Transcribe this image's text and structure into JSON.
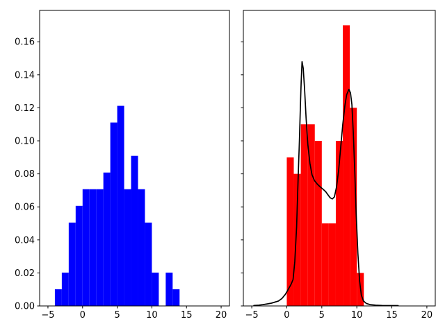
{
  "figure": {
    "background": "#ffffff",
    "description": "Two-panel density histogram figure; left panel blue histogram, right panel red histogram with black kernel-density curve overlay"
  },
  "chart_data": [
    {
      "type": "bar",
      "subtype": "density-histogram",
      "panel": "left",
      "title": "",
      "xlabel": "",
      "ylabel": "",
      "bar_color": "#0000ff",
      "grid": false,
      "legend": null,
      "xlim": [
        -6.2,
        21.2
      ],
      "ylim": [
        0,
        0.179
      ],
      "x_ticks": [
        -5,
        0,
        5,
        10,
        15,
        20
      ],
      "x_tick_labels": [
        "−5",
        "0",
        "5",
        "10",
        "15",
        "20"
      ],
      "y_ticks": [
        0,
        0.02,
        0.04,
        0.06,
        0.08,
        0.1,
        0.12,
        0.14,
        0.16
      ],
      "y_tick_labels": [
        "0.00",
        "0.02",
        "0.04",
        "0.06",
        "0.08",
        "0.10",
        "0.12",
        "0.14",
        "0.16"
      ],
      "bin_edges": [
        -4,
        -3,
        -2,
        -1,
        0,
        1,
        2,
        3,
        4,
        5,
        6,
        7,
        8,
        9,
        10,
        11,
        12,
        13,
        14
      ],
      "densities": [
        0.0101,
        0.0202,
        0.0505,
        0.0606,
        0.0707,
        0.0707,
        0.0707,
        0.0808,
        0.1111,
        0.1212,
        0.0707,
        0.0909,
        0.0707,
        0.0505,
        0.0202,
        0,
        0.0202,
        0.0101
      ]
    },
    {
      "type": "bar+line",
      "subtype": "density-histogram-with-kde",
      "panel": "right",
      "title": "",
      "xlabel": "",
      "ylabel": "",
      "bar_color": "#ff0000",
      "line_color": "#000000",
      "grid": false,
      "legend": null,
      "xlim": [
        -6.2,
        21.2
      ],
      "ylim": [
        0,
        0.179
      ],
      "x_ticks": [
        -5,
        0,
        5,
        10,
        15,
        20
      ],
      "x_tick_labels": [
        "−5",
        "0",
        "5",
        "10",
        "15",
        "20"
      ],
      "y_ticks": [
        0,
        0.02,
        0.04,
        0.06,
        0.08,
        0.1,
        0.12,
        0.14,
        0.16
      ],
      "y_tick_labels": [],
      "bin_edges": [
        0,
        1,
        2,
        3,
        4,
        5,
        6,
        7,
        8,
        9,
        10,
        11
      ],
      "densities": [
        0.09,
        0.08,
        0.11,
        0.11,
        0.1,
        0.05,
        0.05,
        0.1,
        0.17,
        0.12,
        0.02
      ],
      "kde_x": [
        -4.7,
        -4.0,
        -3.4,
        -2.8,
        -2.2,
        -1.7,
        -1.2,
        -0.7,
        -0.2,
        0.2,
        0.6,
        0.9,
        1.15,
        1.4,
        1.6,
        1.8,
        1.95,
        2.05,
        2.18,
        2.35,
        2.55,
        2.75,
        3.0,
        3.3,
        3.6,
        3.95,
        4.35,
        4.75,
        5.15,
        5.55,
        5.9,
        6.2,
        6.5,
        6.8,
        7.1,
        7.4,
        7.7,
        8.0,
        8.3,
        8.55,
        8.87,
        9.1,
        9.3,
        9.5,
        9.7,
        9.9,
        10.15,
        10.4,
        10.65,
        10.95,
        11.35,
        11.9,
        12.7,
        13.6,
        14.6,
        15.9
      ],
      "kde_y": [
        0.0003,
        0.0005,
        0.0008,
        0.0012,
        0.0017,
        0.0023,
        0.003,
        0.0045,
        0.007,
        0.01,
        0.013,
        0.016,
        0.027,
        0.048,
        0.075,
        0.1,
        0.122,
        0.135,
        0.148,
        0.144,
        0.131,
        0.114,
        0.098,
        0.0865,
        0.0795,
        0.076,
        0.0738,
        0.0722,
        0.0708,
        0.0692,
        0.0672,
        0.0655,
        0.0648,
        0.066,
        0.072,
        0.082,
        0.096,
        0.11,
        0.1215,
        0.128,
        0.1312,
        0.129,
        0.122,
        0.105,
        0.082,
        0.056,
        0.032,
        0.015,
        0.0065,
        0.003,
        0.0015,
        0.0008,
        0.0005,
        0.0003,
        0.0002,
        0.0002
      ]
    }
  ]
}
